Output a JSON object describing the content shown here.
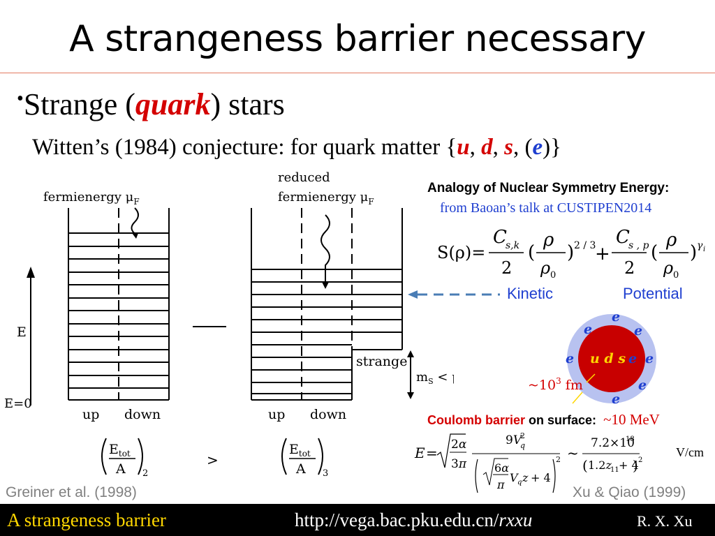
{
  "slide": {
    "title": "A strangeness barrier necessary",
    "bullet": {
      "mark": "•",
      "pre": "Strange (",
      "emph": "quark",
      "post": ") stars"
    },
    "conjecture": {
      "pre": "Witten’s (1984) conjecture: for quark matter {",
      "u": "u",
      "d": "d",
      "s": "s",
      "open_e": ", (",
      "e": "e",
      "close": ")}"
    }
  },
  "diagram": {
    "fermi_left": "fermienergy μ",
    "fermi_sub": "F",
    "reduced": "reduced",
    "fermi_right": "fermienergy μ",
    "axis_E": "E",
    "axis_E0": "E=0",
    "strange": "strange",
    "ms_label": "m",
    "ms_sub": "S",
    "ms_rel": " < μ",
    "ms_sub2": "F",
    "up_left": "up",
    "down_left": "down",
    "up_right": "up",
    "down_right": "down",
    "etot": "E",
    "etot_sub": "tot",
    "denom": "A",
    "idx2": "2",
    "idx3": "3",
    "gt": ">",
    "colors": {
      "lines": "#000000",
      "arrow_dash": "#4a7db5"
    }
  },
  "energy": {
    "heading": "Analogy of Nuclear Symmetry Energy:",
    "source": "from Baoan’s talk at CUSTIPEN2014",
    "kinetic": "Kinetic",
    "potential": "Potential"
  },
  "star": {
    "core": "u d s",
    "core_e": "e",
    "electron": "e",
    "size": "~10",
    "size_exp": "3",
    "size_unit": " fm",
    "colors": {
      "core": "#c80000",
      "halo": "#b8c2f0",
      "core_text": "#ffd700",
      "electron": "#1f3fd0"
    }
  },
  "coulomb": {
    "label_red": "Coulomb barrier",
    "label_rest": " on surface:",
    "value": "~10 MeV",
    "unit": "V/cm"
  },
  "citations": {
    "left": "Greiner et al. (1998)",
    "right": "Xu & Qiao (1999)"
  },
  "footer": {
    "left": "A strangeness barrier",
    "url_plain": "http://vega.bac.pku.edu.cn/",
    "url_italic": "rxxu",
    "author": "R. X. Xu"
  }
}
